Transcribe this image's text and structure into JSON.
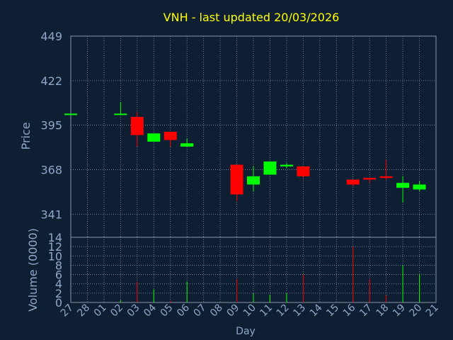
{
  "chart_data": {
    "type": "candlestick",
    "title": "VNH - last updated 20/03/2026",
    "xlabel": "Day",
    "colors": {
      "background": "#0f1f33",
      "grid": "#8a96a3",
      "axis_text": "#8fa8c8",
      "title": "#ffff00",
      "up": "#00ff00",
      "down": "#ff0000"
    },
    "price_panel": {
      "ylabel": "Price",
      "ylim": [
        327,
        449
      ],
      "yticks": [
        341,
        368,
        395,
        422,
        449
      ]
    },
    "volume_panel": {
      "ylabel": "Volume (0000)",
      "ylim": [
        0,
        14
      ],
      "yticks": [
        0,
        2,
        4,
        6,
        8,
        10,
        12,
        14
      ]
    },
    "categories": [
      "27",
      "28",
      "01",
      "02",
      "03",
      "04",
      "05",
      "06",
      "07",
      "08",
      "09",
      "10",
      "11",
      "12",
      "13",
      "14",
      "15",
      "16",
      "17",
      "18",
      "19",
      "20",
      "21"
    ],
    "candles": [
      {
        "day": "27",
        "open": 402,
        "high": 402,
        "low": 402,
        "close": 402,
        "volume": 0
      },
      {
        "day": "02",
        "open": 402,
        "high": 409,
        "low": 401,
        "close": 402,
        "volume": 0.5
      },
      {
        "day": "03",
        "open": 400,
        "high": 403,
        "low": 382,
        "close": 389,
        "volume": 4.5
      },
      {
        "day": "04",
        "open": 385,
        "high": 390,
        "low": 385,
        "close": 390,
        "volume": 2.8
      },
      {
        "day": "05",
        "open": 391,
        "high": 391,
        "low": 382,
        "close": 386,
        "volume": 0.3
      },
      {
        "day": "06",
        "open": 382,
        "high": 387,
        "low": 382,
        "close": 384,
        "volume": 4.5
      },
      {
        "day": "09",
        "open": 371,
        "high": 371,
        "low": 349,
        "close": 353,
        "volume": 5
      },
      {
        "day": "10",
        "open": 359,
        "high": 370,
        "low": 355,
        "close": 364,
        "volume": 2
      },
      {
        "day": "11",
        "open": 365,
        "high": 373,
        "low": 365,
        "close": 373,
        "volume": 1.7
      },
      {
        "day": "12",
        "open": 370,
        "high": 372,
        "low": 369,
        "close": 371,
        "volume": 2
      },
      {
        "day": "13",
        "open": 370,
        "high": 370,
        "low": 363,
        "close": 364,
        "volume": 6
      },
      {
        "day": "16",
        "open": 362,
        "high": 362,
        "low": 358,
        "close": 359,
        "volume": 12
      },
      {
        "day": "17",
        "open": 363,
        "high": 363,
        "low": 360,
        "close": 362,
        "volume": 5
      },
      {
        "day": "18",
        "open": 364,
        "high": 374,
        "low": 362,
        "close": 363,
        "volume": 1.5
      },
      {
        "day": "19",
        "open": 357,
        "high": 364,
        "low": 348,
        "close": 360,
        "volume": 8
      },
      {
        "day": "20",
        "open": 356,
        "high": 361,
        "low": 355,
        "close": 359,
        "volume": 6
      }
    ]
  }
}
